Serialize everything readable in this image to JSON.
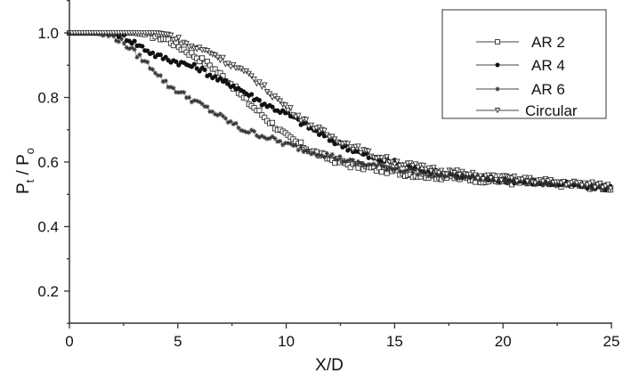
{
  "chart_data": {
    "type": "scatter",
    "title": "",
    "xlabel": "X/D",
    "ylabel_main": "P",
    "ylabel_sub1": "t",
    "ylabel_mid": " / P",
    "ylabel_sub2": "o",
    "xlim": [
      0,
      25
    ],
    "ylim": [
      0.1,
      1.1
    ],
    "x_ticks": [
      "0",
      "5",
      "10",
      "15",
      "20",
      "25"
    ],
    "y_ticks": [
      "0.2",
      "0.4",
      "0.6",
      "0.8",
      "1.0"
    ],
    "grid": false,
    "legend_position": "top-right",
    "series": [
      {
        "name": "AR 2",
        "marker": "open-square",
        "x": [
          0,
          1,
          2,
          3,
          4,
          4.5,
          5,
          5.5,
          6,
          6.5,
          7,
          7.5,
          8,
          8.5,
          9,
          9.5,
          10,
          11,
          12,
          13,
          14,
          15,
          16,
          17,
          18,
          19,
          20,
          21,
          22,
          23,
          24,
          25
        ],
        "values": [
          1.0,
          1.0,
          1.0,
          1.0,
          0.99,
          0.98,
          0.96,
          0.94,
          0.92,
          0.9,
          0.87,
          0.84,
          0.8,
          0.77,
          0.74,
          0.71,
          0.68,
          0.64,
          0.61,
          0.59,
          0.58,
          0.57,
          0.56,
          0.555,
          0.55,
          0.545,
          0.54,
          0.535,
          0.535,
          0.53,
          0.525,
          0.52
        ]
      },
      {
        "name": "AR 4",
        "marker": "filled-circle",
        "x": [
          0,
          1,
          2,
          2.5,
          3,
          3.5,
          4,
          4.5,
          5,
          5.5,
          6,
          6.5,
          7,
          7.5,
          8,
          8.5,
          9,
          10,
          11,
          12,
          13,
          14,
          15,
          16,
          17,
          18,
          19,
          20,
          21,
          22,
          23,
          24,
          25
        ],
        "values": [
          1.0,
          1.0,
          1.0,
          0.99,
          0.97,
          0.95,
          0.93,
          0.92,
          0.91,
          0.9,
          0.89,
          0.87,
          0.85,
          0.84,
          0.82,
          0.8,
          0.78,
          0.75,
          0.71,
          0.67,
          0.64,
          0.61,
          0.6,
          0.58,
          0.57,
          0.56,
          0.55,
          0.545,
          0.54,
          0.535,
          0.53,
          0.525,
          0.52
        ]
      },
      {
        "name": "AR 6",
        "marker": "asterisk",
        "x": [
          0,
          1,
          2,
          2.5,
          3,
          3.5,
          4,
          4.5,
          5,
          5.5,
          6,
          6.5,
          7,
          7.5,
          8,
          9,
          10,
          11,
          12,
          13,
          14,
          15,
          16,
          17,
          18,
          19,
          20,
          21,
          22,
          23,
          24,
          25
        ],
        "values": [
          1.0,
          1.0,
          0.99,
          0.97,
          0.94,
          0.91,
          0.88,
          0.84,
          0.82,
          0.8,
          0.78,
          0.76,
          0.74,
          0.72,
          0.7,
          0.68,
          0.655,
          0.635,
          0.62,
          0.6,
          0.59,
          0.58,
          0.57,
          0.56,
          0.555,
          0.55,
          0.545,
          0.54,
          0.535,
          0.53,
          0.525,
          0.52
        ]
      },
      {
        "name": "Circular",
        "marker": "open-triangle-down",
        "x": [
          0,
          1,
          2,
          3,
          4,
          4.5,
          5,
          5.5,
          6,
          6.5,
          7,
          7.5,
          8,
          8.5,
          9,
          9.5,
          10,
          11,
          12,
          13,
          14,
          15,
          16,
          17,
          18,
          19,
          20,
          21,
          22,
          23,
          24,
          25
        ],
        "values": [
          1.0,
          1.0,
          1.0,
          1.0,
          1.0,
          0.995,
          0.98,
          0.96,
          0.95,
          0.94,
          0.92,
          0.9,
          0.88,
          0.86,
          0.83,
          0.8,
          0.77,
          0.72,
          0.68,
          0.65,
          0.62,
          0.6,
          0.585,
          0.575,
          0.565,
          0.555,
          0.55,
          0.545,
          0.54,
          0.535,
          0.53,
          0.525
        ]
      }
    ]
  },
  "legend": {
    "items": [
      "AR 2",
      "AR 4",
      "AR 6",
      "Circular"
    ]
  },
  "colors": {
    "axis": "#333333",
    "marker": "#222222",
    "background": "#ffffff"
  }
}
